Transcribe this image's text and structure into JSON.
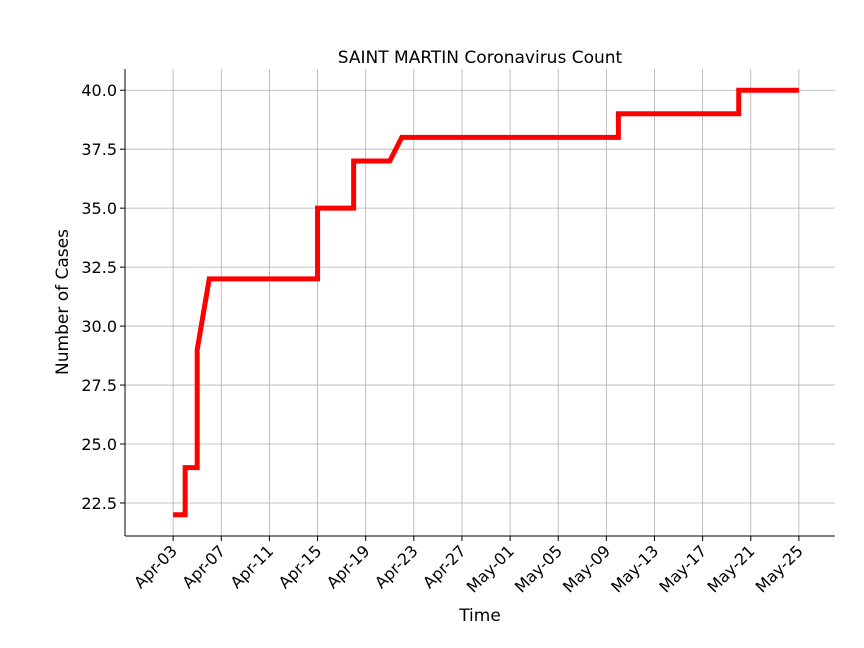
{
  "chart_data": {
    "type": "line",
    "title": "SAINT MARTIN Coronavirus Count",
    "xlabel": "Time",
    "ylabel": "Number of Cases",
    "x_tick_labels": [
      "Apr-03",
      "Apr-07",
      "Apr-11",
      "Apr-15",
      "Apr-19",
      "Apr-23",
      "Apr-27",
      "May-01",
      "May-05",
      "May-09",
      "May-13",
      "May-17",
      "May-21",
      "May-25"
    ],
    "y_tick_labels": [
      "22.5",
      "25.0",
      "27.5",
      "30.0",
      "32.5",
      "35.0",
      "37.5",
      "40.0"
    ],
    "xlim": [
      "2020-03-30",
      "2020-05-28"
    ],
    "ylim": [
      21.1,
      40.9
    ],
    "grid": true,
    "line_color": "#ff0000",
    "series": [
      {
        "x": [
          "2020-04-03",
          "2020-04-04",
          "2020-04-04",
          "2020-04-05",
          "2020-04-05",
          "2020-04-06",
          "2020-04-15",
          "2020-04-15",
          "2020-04-18",
          "2020-04-18",
          "2020-04-21",
          "2020-04-22",
          "2020-05-10",
          "2020-05-10",
          "2020-05-20",
          "2020-05-20",
          "2020-05-25"
        ],
        "y": [
          22,
          22,
          24,
          24,
          29,
          32,
          32,
          35,
          35,
          37,
          37,
          38,
          38,
          39,
          39,
          40,
          40
        ]
      }
    ]
  }
}
